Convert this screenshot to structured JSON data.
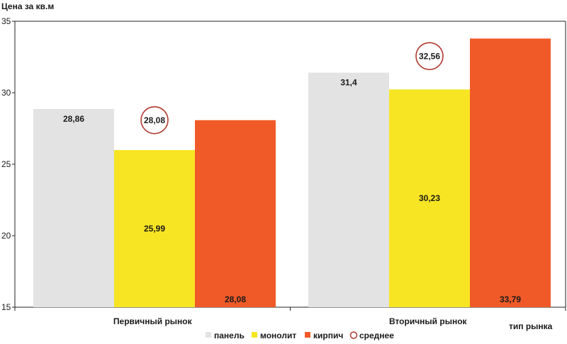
{
  "chart_data": {
    "type": "bar",
    "ylabel": "Цена за кв.м",
    "xlabel": "тип рынка",
    "ylim": [
      15,
      35
    ],
    "yticks": [
      15,
      20,
      25,
      30,
      35
    ],
    "categories": [
      "Первичный рынок",
      "Вторичный рынок"
    ],
    "series": [
      {
        "name": "панель",
        "values": [
          28.86,
          31.4
        ],
        "labels": [
          "28,86",
          "31,4"
        ],
        "color": "#e3e3e3",
        "label_position": "top"
      },
      {
        "name": "монолит",
        "values": [
          25.99,
          30.23
        ],
        "labels": [
          "25,99",
          "30,23"
        ],
        "color": "#f7e524",
        "label_position": "middle"
      },
      {
        "name": "кирпич",
        "values": [
          28.08,
          33.79
        ],
        "labels": [
          "28,08",
          "33,79"
        ],
        "color": "#f05a28",
        "label_position": "bottom"
      }
    ],
    "average": {
      "name": "среднее",
      "values": [
        28.08,
        32.56
      ],
      "labels": [
        "28,08",
        "32,56"
      ],
      "color": "#b03a2e"
    },
    "legend_position": "bottom",
    "grid": false
  }
}
